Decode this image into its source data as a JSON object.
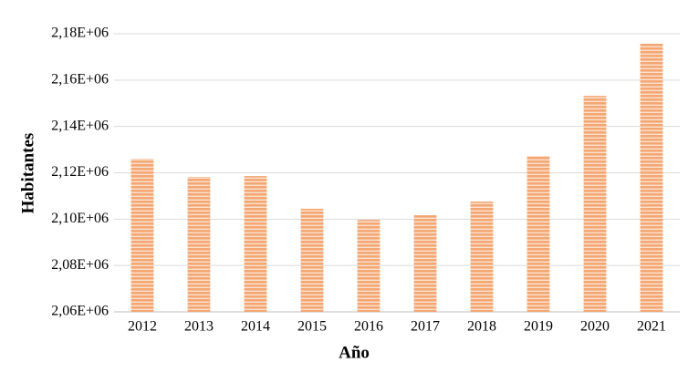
{
  "chart_data": {
    "type": "bar",
    "x_label": "Año",
    "y_label": "Habitantes",
    "categories": [
      "2012",
      "2013",
      "2014",
      "2015",
      "2016",
      "2017",
      "2018",
      "2019",
      "2020",
      "2021"
    ],
    "values": [
      2126000,
      2118200,
      2118600,
      2104500,
      2099700,
      2101700,
      2107600,
      2127300,
      2153200,
      2175700
    ],
    "color": "#f4a773",
    "ylim": [
      2060000,
      2180000
    ],
    "yticks": [
      {
        "value": 2060000,
        "label": "2,06E+06"
      },
      {
        "value": 2080000,
        "label": "2,08E+06"
      },
      {
        "value": 2100000,
        "label": "2,10E+06"
      },
      {
        "value": 2120000,
        "label": "2,12E+06"
      },
      {
        "value": 2140000,
        "label": "2,14E+06"
      },
      {
        "value": 2160000,
        "label": "2,16E+06"
      },
      {
        "value": 2180000,
        "label": "2,18E+06"
      }
    ],
    "grid": true
  }
}
